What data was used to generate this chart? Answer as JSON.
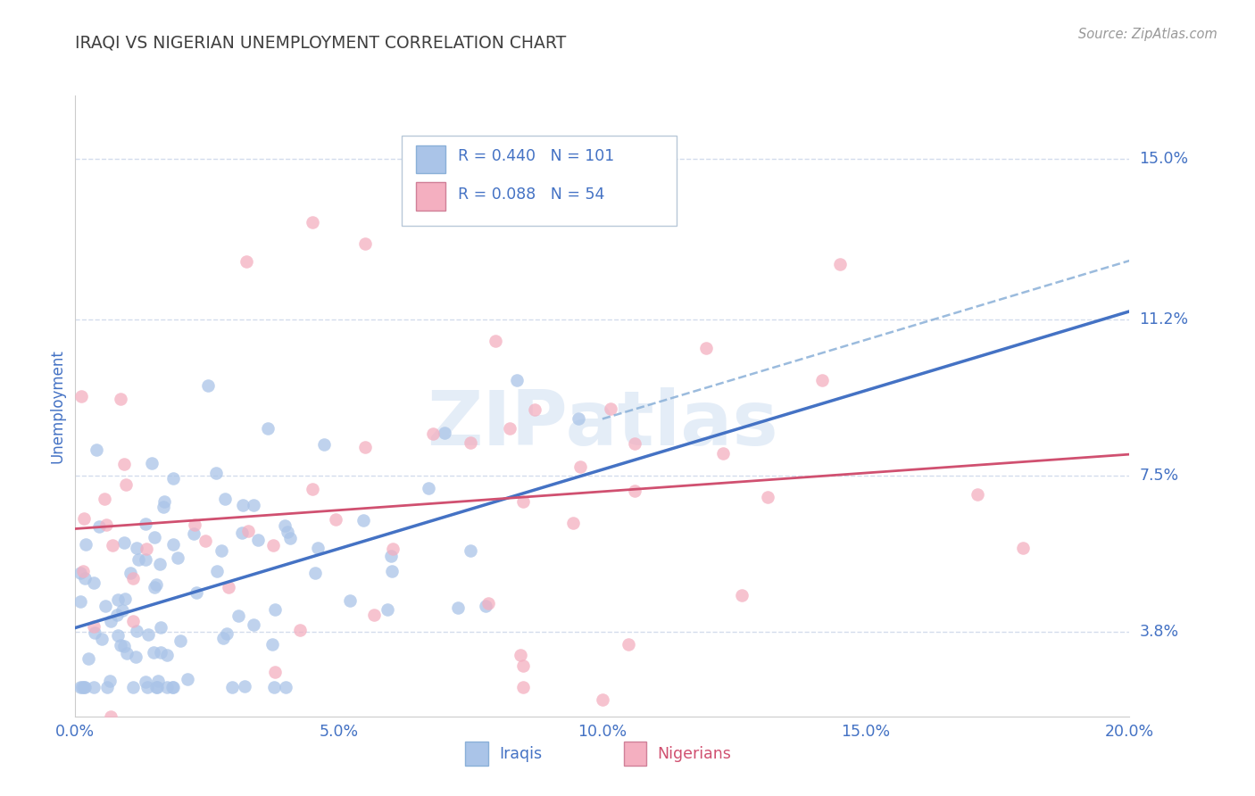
{
  "title": "IRAQI VS NIGERIAN UNEMPLOYMENT CORRELATION CHART",
  "source": "Source: ZipAtlas.com",
  "ylabel": "Unemployment",
  "xlim": [
    0.0,
    0.2
  ],
  "ylim": [
    0.018,
    0.165
  ],
  "yticks": [
    0.038,
    0.075,
    0.112,
    0.15
  ],
  "ytick_labels": [
    "3.8%",
    "7.5%",
    "11.2%",
    "15.0%"
  ],
  "xticks": [
    0.0,
    0.05,
    0.1,
    0.15,
    0.2
  ],
  "xtick_labels": [
    "0.0%",
    "5.0%",
    "10.0%",
    "15.0%",
    "20.0%"
  ],
  "blue_fill": "#aac4e8",
  "pink_fill": "#f4afc0",
  "blue_line": "#4472c4",
  "pink_line": "#d05070",
  "axis_color": "#4472c4",
  "title_color": "#404040",
  "grid_color": "#c8d4e8",
  "legend_R1": "R = 0.440",
  "legend_N1": "N = 101",
  "legend_R2": "R = 0.088",
  "legend_N2": "N = 54",
  "legend_label1": "Iraqis",
  "legend_label2": "Nigerians",
  "watermark": "ZIPatlas",
  "blue_intercept": 0.038,
  "blue_slope": 0.38,
  "pink_intercept": 0.063,
  "pink_slope": 0.06
}
